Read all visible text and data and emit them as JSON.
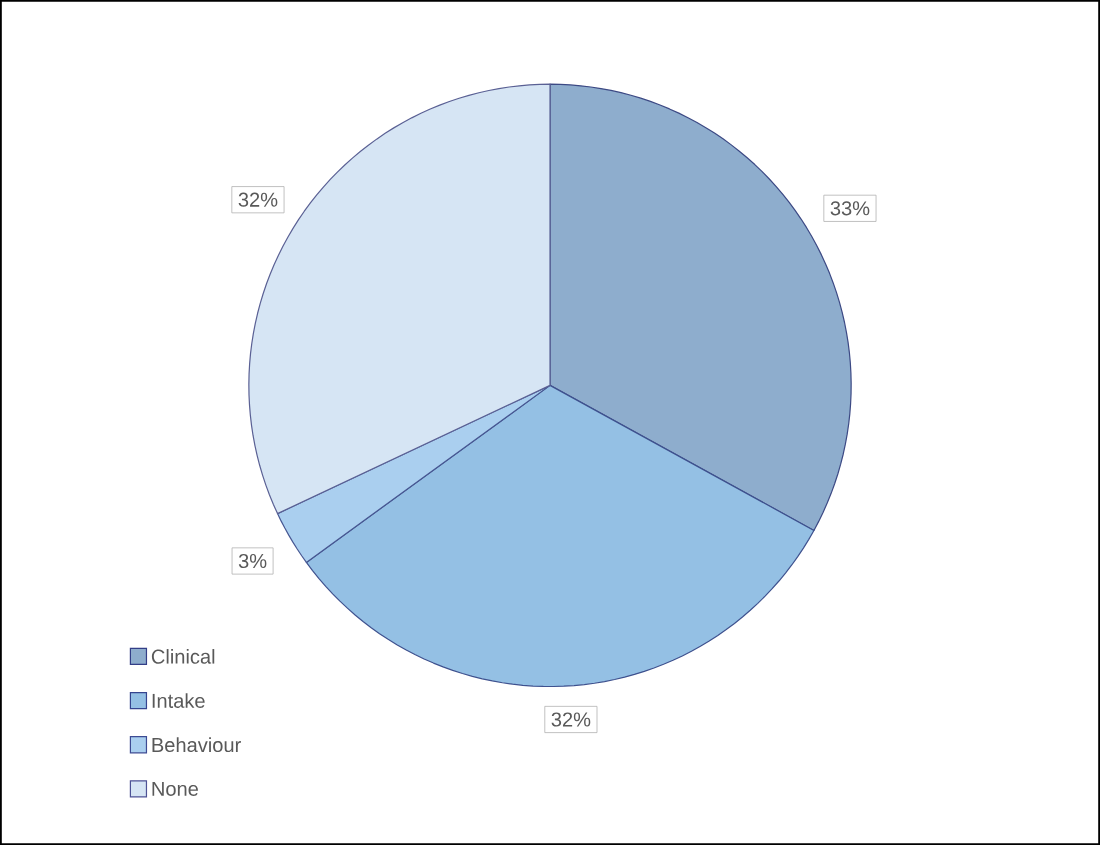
{
  "chart_data": {
    "type": "pie",
    "categories": [
      "Clinical",
      "Intake",
      "Behaviour",
      "None"
    ],
    "values": [
      33,
      32,
      3,
      32
    ],
    "colors": [
      "#8eadcd",
      "#94c0e4",
      "#aacfef",
      "#d6e5f4"
    ],
    "value_labels": [
      "33%",
      "32%",
      "3%",
      "32%"
    ],
    "legend": "bottom left"
  }
}
